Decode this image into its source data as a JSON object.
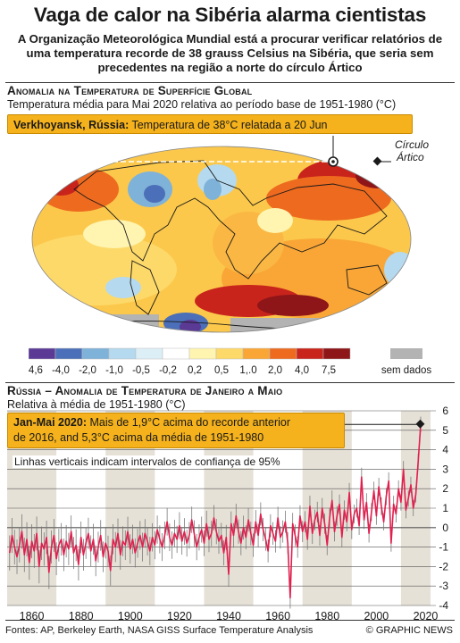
{
  "header": {
    "title": "Vaga de calor na Sibéria alarma cientistas",
    "subtitle": "A Organização Meteorológica Mundial está a procurar verificar relatórios de uma temperatura recorde de 38 grauss Celsius na Sibéria, que seria sem precedentes na região a norte do círculo Ártico"
  },
  "map_section": {
    "title": "Anomalia na Temperatura de Superfície Global",
    "subtitle": "Temperatura média para Mai 2020 relativa ao período base de 1951-1980 (°C)",
    "callout_bold": "Verkhoyansk, Rússia:",
    "callout_text": " Temperatura de 38°C relatada a 20 Jun",
    "arctic_label_1": "Círculo",
    "arctic_label_2": "Ártico",
    "legend": {
      "labels": [
        "-4,6",
        "-4,0",
        "-2,0",
        "-1,0",
        "-0,5",
        "-0,2",
        "0,2",
        "0,5",
        "1,.0",
        "2,0",
        "4,0",
        "7,5"
      ],
      "colors": [
        "#5b3a96",
        "#4b6fb8",
        "#7fb2d9",
        "#b5d9ee",
        "#dceff7",
        "#ffffff",
        "#fff4b0",
        "#fdd96a",
        "#f9a636",
        "#ee6a1f",
        "#c8241c",
        "#8e1518"
      ],
      "no_data_label": "sem dados",
      "no_data_color": "#b3b3b3"
    }
  },
  "chart_section": {
    "title": "Rússia – Anomalia de Temperatura de Janeiro a Maio",
    "subtitle": "Relativa à média de 1951-1980 (°C)",
    "callout_bold": "Jan-Mai 2020:",
    "callout_text_1": " Mais de 1,9°C acima do recorde anterior",
    "callout_text_2": "de 2016, and 5,3°C acima da média de 1951-1980",
    "ci_note": "Linhas verticais indicam intervalos de confiança de 95%"
  },
  "chart_data": {
    "type": "line",
    "title": "Rússia – Anomalia de Temperatura de Janeiro a Maio",
    "ylabel": "Relativa à média de 1951-1980 (°C)",
    "xlim": [
      1850,
      2022
    ],
    "ylim": [
      -4,
      6
    ],
    "x_ticks": [
      1860,
      1880,
      1900,
      1920,
      1940,
      1960,
      1980,
      2000,
      2020
    ],
    "y_ticks": [
      -4,
      -3,
      -2,
      -1,
      0,
      1,
      2,
      3,
      4,
      5,
      6
    ],
    "grid": "horizontal",
    "line_color": "#e0204f",
    "x_start": 1851,
    "values": [
      -1.3,
      -0.4,
      -1.0,
      -1.5,
      -0.9,
      -0.2,
      -1.4,
      -0.6,
      -1.8,
      -0.7,
      -1.2,
      -0.3,
      -2.0,
      -0.8,
      -1.1,
      -0.5,
      -2.3,
      -1.0,
      -0.4,
      -1.6,
      -0.9,
      -0.6,
      -1.4,
      -0.7,
      -1.1,
      -0.2,
      -1.3,
      -0.9,
      -1.9,
      -0.5,
      -1.4,
      -0.8,
      -0.3,
      -1.2,
      -0.6,
      -1.7,
      -1.0,
      -0.4,
      -1.5,
      -0.8,
      -1.2,
      -2.2,
      -0.6,
      -1.0,
      -0.3,
      -1.4,
      -0.7,
      -0.9,
      -0.2,
      -1.1,
      -0.6,
      -1.3,
      -0.8,
      -0.4,
      -1.0,
      -0.3,
      -0.7,
      -1.2,
      -0.5,
      -0.9,
      -0.1,
      -0.6,
      -1.0,
      -0.4,
      0.3,
      -0.5,
      -0.9,
      -0.3,
      -0.6,
      0.1,
      -0.7,
      -0.2,
      -0.8,
      -0.4,
      0.4,
      -0.3,
      -1.0,
      -0.5,
      -0.1,
      -0.8,
      0.2,
      -0.6,
      -0.3,
      0.5,
      -0.2,
      -0.7,
      -0.4,
      -1.3,
      -0.5,
      -2.4,
      0.2,
      -0.4,
      0.6,
      -0.2,
      -0.8,
      0.0,
      -0.5,
      0.4,
      -0.3,
      -0.9,
      0.3,
      -0.4,
      0.7,
      -0.1,
      -0.6,
      -1.2,
      0.1,
      -0.3,
      -0.7,
      0.5,
      -0.5,
      -0.2,
      0.3,
      -0.8,
      -3.6,
      0.2,
      -0.4,
      -1.0,
      0.6,
      -0.2,
      0.3,
      -0.6,
      1.1,
      -0.3,
      0.4,
      0.8,
      -0.4,
      1.0,
      0.2,
      -0.9,
      0.5,
      1.4,
      -0.2,
      0.6,
      1.2,
      -0.5,
      0.9,
      0.3,
      1.8,
      -0.1,
      0.7,
      1.0,
      0.1,
      2.6,
      0.4,
      1.3,
      -0.3,
      0.8,
      1.9,
      0.6,
      2.1,
      1.1,
      0.3,
      1.6,
      2.4,
      -0.8,
      1.2,
      0.7,
      2.0,
      1.3,
      3.0,
      0.9,
      1.5,
      2.2,
      1.0,
      1.7,
      3.4,
      5.3
    ]
  },
  "footer": {
    "sources": "Fontes: AP, Berkeley Earth, NASA GISS Surface Temperature Analysis",
    "copyright": "© GRAPHIC NEWS"
  }
}
